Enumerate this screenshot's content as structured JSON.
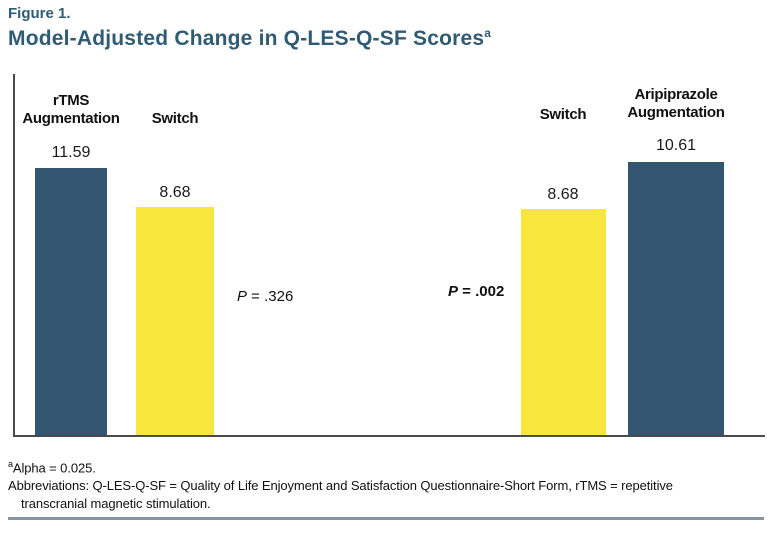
{
  "header": {
    "figure_label": "Figure 1.",
    "title": "Model-Adjusted Change in Q-LES-Q-SF Scores",
    "title_superscript": "a"
  },
  "chart_data": {
    "type": "bar",
    "title": "Model-Adjusted Change in Q-LES-Q-SF Scores",
    "categories": [
      "rTMS Augmentation",
      "Switch",
      "Switch",
      "Aripiprazole Augmentation"
    ],
    "values": [
      11.59,
      8.68,
      8.68,
      10.61
    ],
    "bar_colors": [
      "#345670",
      "#F7E63D",
      "#F7E63D",
      "#345670"
    ],
    "value_labels": [
      "11.59",
      "8.68",
      "8.68",
      "10.61"
    ],
    "ylim": [
      0,
      12
    ],
    "grid": false,
    "legend": "none",
    "annotations": [
      {
        "text": "P = .326",
        "between": [
          "rTMS Augmentation",
          "Switch"
        ],
        "bold": false
      },
      {
        "text": "P = .002",
        "between": [
          "Switch",
          "Aripiprazole Augmentation"
        ],
        "bold": true
      }
    ]
  },
  "bars": [
    {
      "label": "rTMS\nAugmentation",
      "value": "11.59"
    },
    {
      "label": "Switch",
      "value": "8.68"
    },
    {
      "label": "Switch",
      "value": "8.68"
    },
    {
      "label": "Aripiprazole\nAugmentation",
      "value": "10.61"
    }
  ],
  "pvalues": {
    "left": {
      "symbol": "P",
      "rest": " = .326"
    },
    "right": {
      "symbol": "P",
      "rest": " = .002"
    }
  },
  "footnotes": {
    "alpha_superscript": "a",
    "alpha_text": "Alpha = 0.025.",
    "abbrev_line1": "Abbreviations: Q-LES-Q-SF = Quality of Life Enjoyment and Satisfaction Questionnaire-Short Form, rTMS = repetitive",
    "abbrev_line2": "transcranial magnetic stimulation."
  },
  "colors": {
    "dark_teal_bar": "#345670",
    "yellow_bar": "#F7E63D",
    "title_text": "#2F5B75",
    "axis_line": "#4A4A4C",
    "bottom_rule": "#8496A4"
  }
}
